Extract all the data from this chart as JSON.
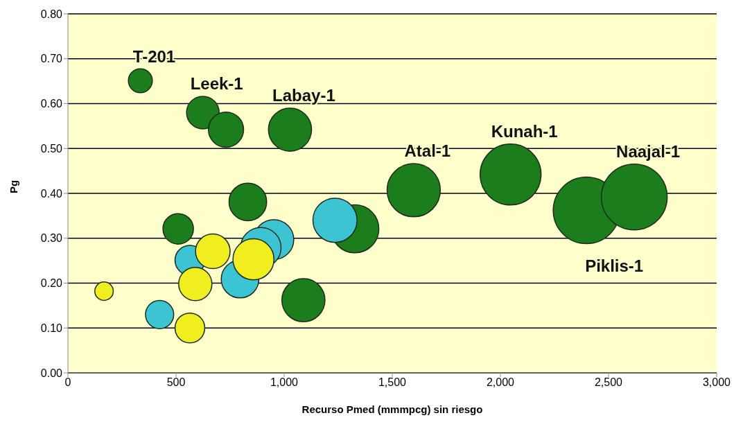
{
  "chart_data": {
    "type": "bubble",
    "xlabel": "Recurso Pmed (mmmpcg) sin riesgo",
    "ylabel": "Pg",
    "series": [
      {
        "color": "#1b7d1b",
        "x": [
          335,
          624,
          731,
          1027,
          832,
          510,
          1327,
          1089,
          1599,
          2047,
          2398,
          2619
        ],
        "values": [
          0.651,
          0.58,
          0.542,
          0.542,
          0.381,
          0.321,
          0.321,
          0.162,
          0.407,
          0.442,
          0.362,
          0.392
        ],
        "sizes": [
          0.13,
          0.24,
          0.28,
          0.42,
          0.32,
          0.21,
          0.52,
          0.42,
          0.64,
          0.84,
          1,
          0.98
        ]
      },
      {
        "color": "#3cc4d2",
        "x": [
          1235,
          952,
          892,
          796,
          564,
          424
        ],
        "values": [
          0.34,
          0.297,
          0.279,
          0.209,
          0.251,
          0.13
        ],
        "sizes": [
          0.44,
          0.36,
          0.37,
          0.32,
          0.2,
          0.18
        ]
      },
      {
        "color": "#f0ee1e",
        "x": [
          167,
          670,
          589,
          564,
          858
        ],
        "values": [
          0.182,
          0.271,
          0.198,
          0.1,
          0.253
        ],
        "sizes": [
          0.077,
          0.27,
          0.25,
          0.2,
          0.38
        ]
      }
    ],
    "annotations": [
      {
        "text": "T-201",
        "x": 335,
        "y": 0.651
      },
      {
        "text": "Leek-1",
        "x": 624,
        "y": 0.58
      },
      {
        "text": "Labay-1",
        "x": 1027,
        "y": 0.542
      },
      {
        "text": "Atal-1",
        "x": 1599,
        "y": 0.407
      },
      {
        "text": "Kunah-1",
        "x": 2047,
        "y": 0.442
      },
      {
        "text": "Naajal-1",
        "x": 2619,
        "y": 0.392
      },
      {
        "text": "Piklis-1",
        "x": 2398,
        "y": 0.362
      }
    ],
    "xlim": [
      0,
      3000
    ],
    "xticks": [
      0,
      500,
      {
        "value": 1000,
        "label": "1,000"
      },
      {
        "value": 1500,
        "label": "1,500"
      },
      {
        "value": 2000,
        "label": "2,000"
      },
      {
        "value": 2500,
        "label": "2,500"
      },
      {
        "value": 3000,
        "label": "3,000"
      }
    ],
    "ylim": [
      0,
      0.8
    ],
    "yticks": [
      {
        "value": 0,
        "label": "0.00"
      },
      {
        "value": 0.1,
        "label": "0.10"
      },
      {
        "value": 0.2,
        "label": "0.20"
      },
      {
        "value": 0.3,
        "label": "0.30"
      },
      {
        "value": 0.4,
        "label": "0.40"
      },
      {
        "value": 0.5,
        "label": "0.50"
      },
      {
        "value": 0.6,
        "label": "0.60"
      },
      {
        "value": 0.7,
        "label": "0.70"
      },
      {
        "value": 0.8,
        "label": "0.80"
      }
    ],
    "grid": "y"
  }
}
